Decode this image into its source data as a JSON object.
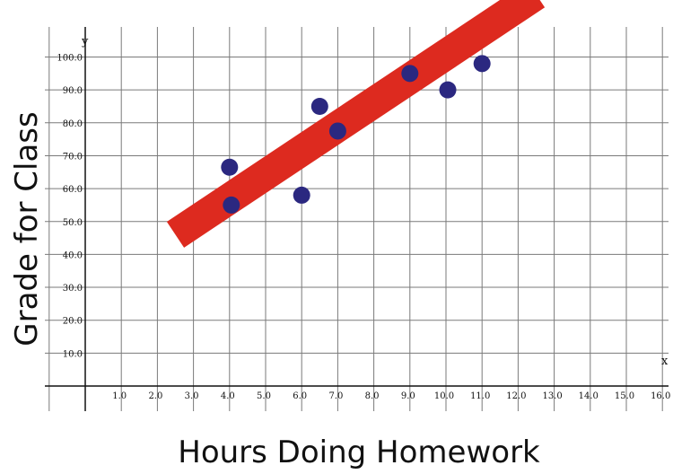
{
  "chart_data": {
    "type": "scatter",
    "xlabel": "Hours Doing Homework",
    "ylabel": "Grade for Class",
    "x_axis_letter": "x",
    "y_axis_letter": "y",
    "xlim": [
      -1.2,
      16.2
    ],
    "ylim": [
      -5,
      107
    ],
    "x_ticks": [
      "1.0",
      "2.0",
      "3.0",
      "4.0",
      "5.0",
      "6.0",
      "7.0",
      "8.0",
      "9.0",
      "10.0",
      "11.0",
      "12.0",
      "13.0",
      "14.0",
      "15.0",
      "16.0"
    ],
    "y_ticks": [
      "10.0",
      "20.0",
      "30.0",
      "40.0",
      "50.0",
      "60.0",
      "70.0",
      "80.0",
      "90.0",
      "100.0"
    ],
    "grid": true,
    "points": [
      {
        "x": 4.0,
        "y": 66.5
      },
      {
        "x": 4.05,
        "y": 55.0
      },
      {
        "x": 6.0,
        "y": 58.0
      },
      {
        "x": 6.5,
        "y": 85.0
      },
      {
        "x": 7.0,
        "y": 77.5
      },
      {
        "x": 9.0,
        "y": 95.0
      },
      {
        "x": 10.05,
        "y": 90.0
      },
      {
        "x": 11.0,
        "y": 98.0
      }
    ],
    "trend_band": {
      "x_start": 2.5,
      "y_start": 46.0,
      "x_end": 12.5,
      "y_end": 119.0,
      "width_y": 11.0,
      "color": "#dd2a1f"
    },
    "point_color": "#2b2880"
  }
}
